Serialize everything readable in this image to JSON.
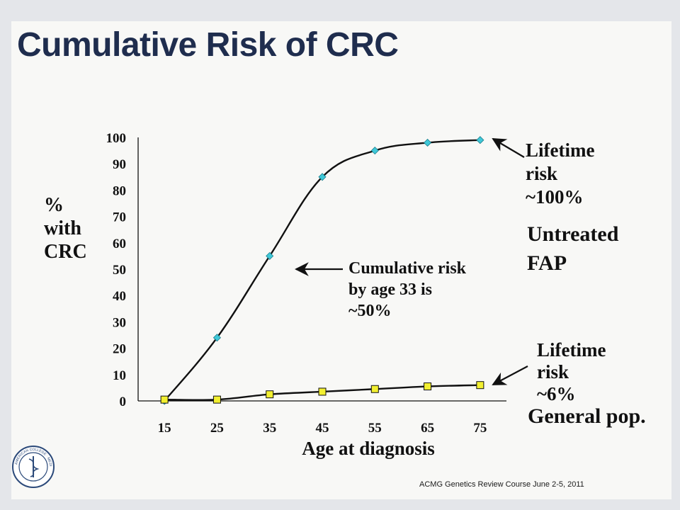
{
  "slide": {
    "title": "Cumulative Risk of CRC",
    "footer": "ACMG Genetics Review Course   June 2-5, 2011",
    "logo_text": "AMERICAN COLLEGE OF MEDICAL GENETICS"
  },
  "colors": {
    "title": "#1f2d4e",
    "fap_marker": "#3fc8d8",
    "general_marker": "#f2ef30",
    "line": "#111111"
  },
  "chart_data": {
    "type": "line",
    "x": [
      15,
      25,
      35,
      45,
      55,
      65,
      75
    ],
    "xlabel": "Age at diagnosis",
    "ylabel": [
      "%",
      "with",
      "CRC"
    ],
    "ylim": [
      0,
      100
    ],
    "yticks": [
      0,
      10,
      20,
      30,
      40,
      50,
      60,
      70,
      80,
      90,
      100
    ],
    "xticks": [
      15,
      25,
      35,
      45,
      55,
      65,
      75
    ],
    "grid": false,
    "series": [
      {
        "name": "Untreated FAP",
        "marker": "diamond",
        "values": [
          0,
          24,
          55,
          85,
          95,
          98,
          99
        ]
      },
      {
        "name": "General pop.",
        "marker": "square",
        "values": [
          0.5,
          0.5,
          2.5,
          3.5,
          4.5,
          5.5,
          6
        ]
      }
    ],
    "annotations": {
      "fap_lifetime": [
        "Lifetime",
        "risk",
        "~100%"
      ],
      "fap_label": [
        "Untreated",
        "FAP"
      ],
      "midpoint": [
        "Cumulative risk",
        "by age 33 is",
        "~50%"
      ],
      "general_lifetime": [
        "Lifetime",
        "risk",
        "~6%"
      ],
      "general_label": "General pop."
    }
  }
}
